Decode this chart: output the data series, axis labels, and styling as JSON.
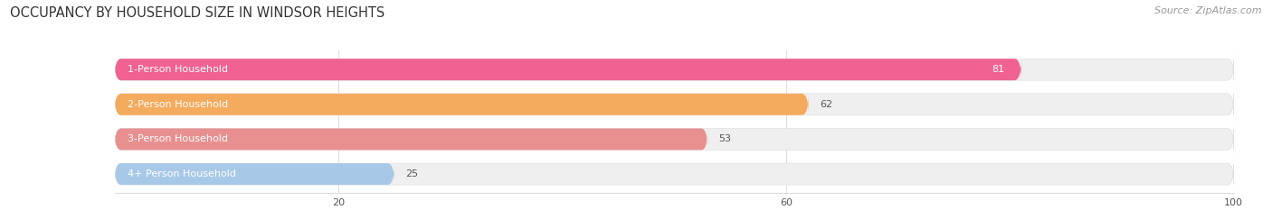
{
  "title": "OCCUPANCY BY HOUSEHOLD SIZE IN WINDSOR HEIGHTS",
  "source": "Source: ZipAtlas.com",
  "categories": [
    "1-Person Household",
    "2-Person Household",
    "3-Person Household",
    "4+ Person Household"
  ],
  "values": [
    81,
    62,
    53,
    25
  ],
  "bar_colors": [
    "#F06292",
    "#F5AB5E",
    "#E89090",
    "#A8C8E8"
  ],
  "bar_bg_color": "#EFEFEF",
  "xlim": [
    0,
    100
  ],
  "xticks": [
    20,
    60,
    100
  ],
  "title_fontsize": 10.5,
  "source_fontsize": 8,
  "label_fontsize": 8,
  "value_fontsize": 8,
  "bar_height": 0.62,
  "bg_color": "#FFFFFF",
  "text_color_inside": "#FFFFFF",
  "text_color_outside": "#555555"
}
